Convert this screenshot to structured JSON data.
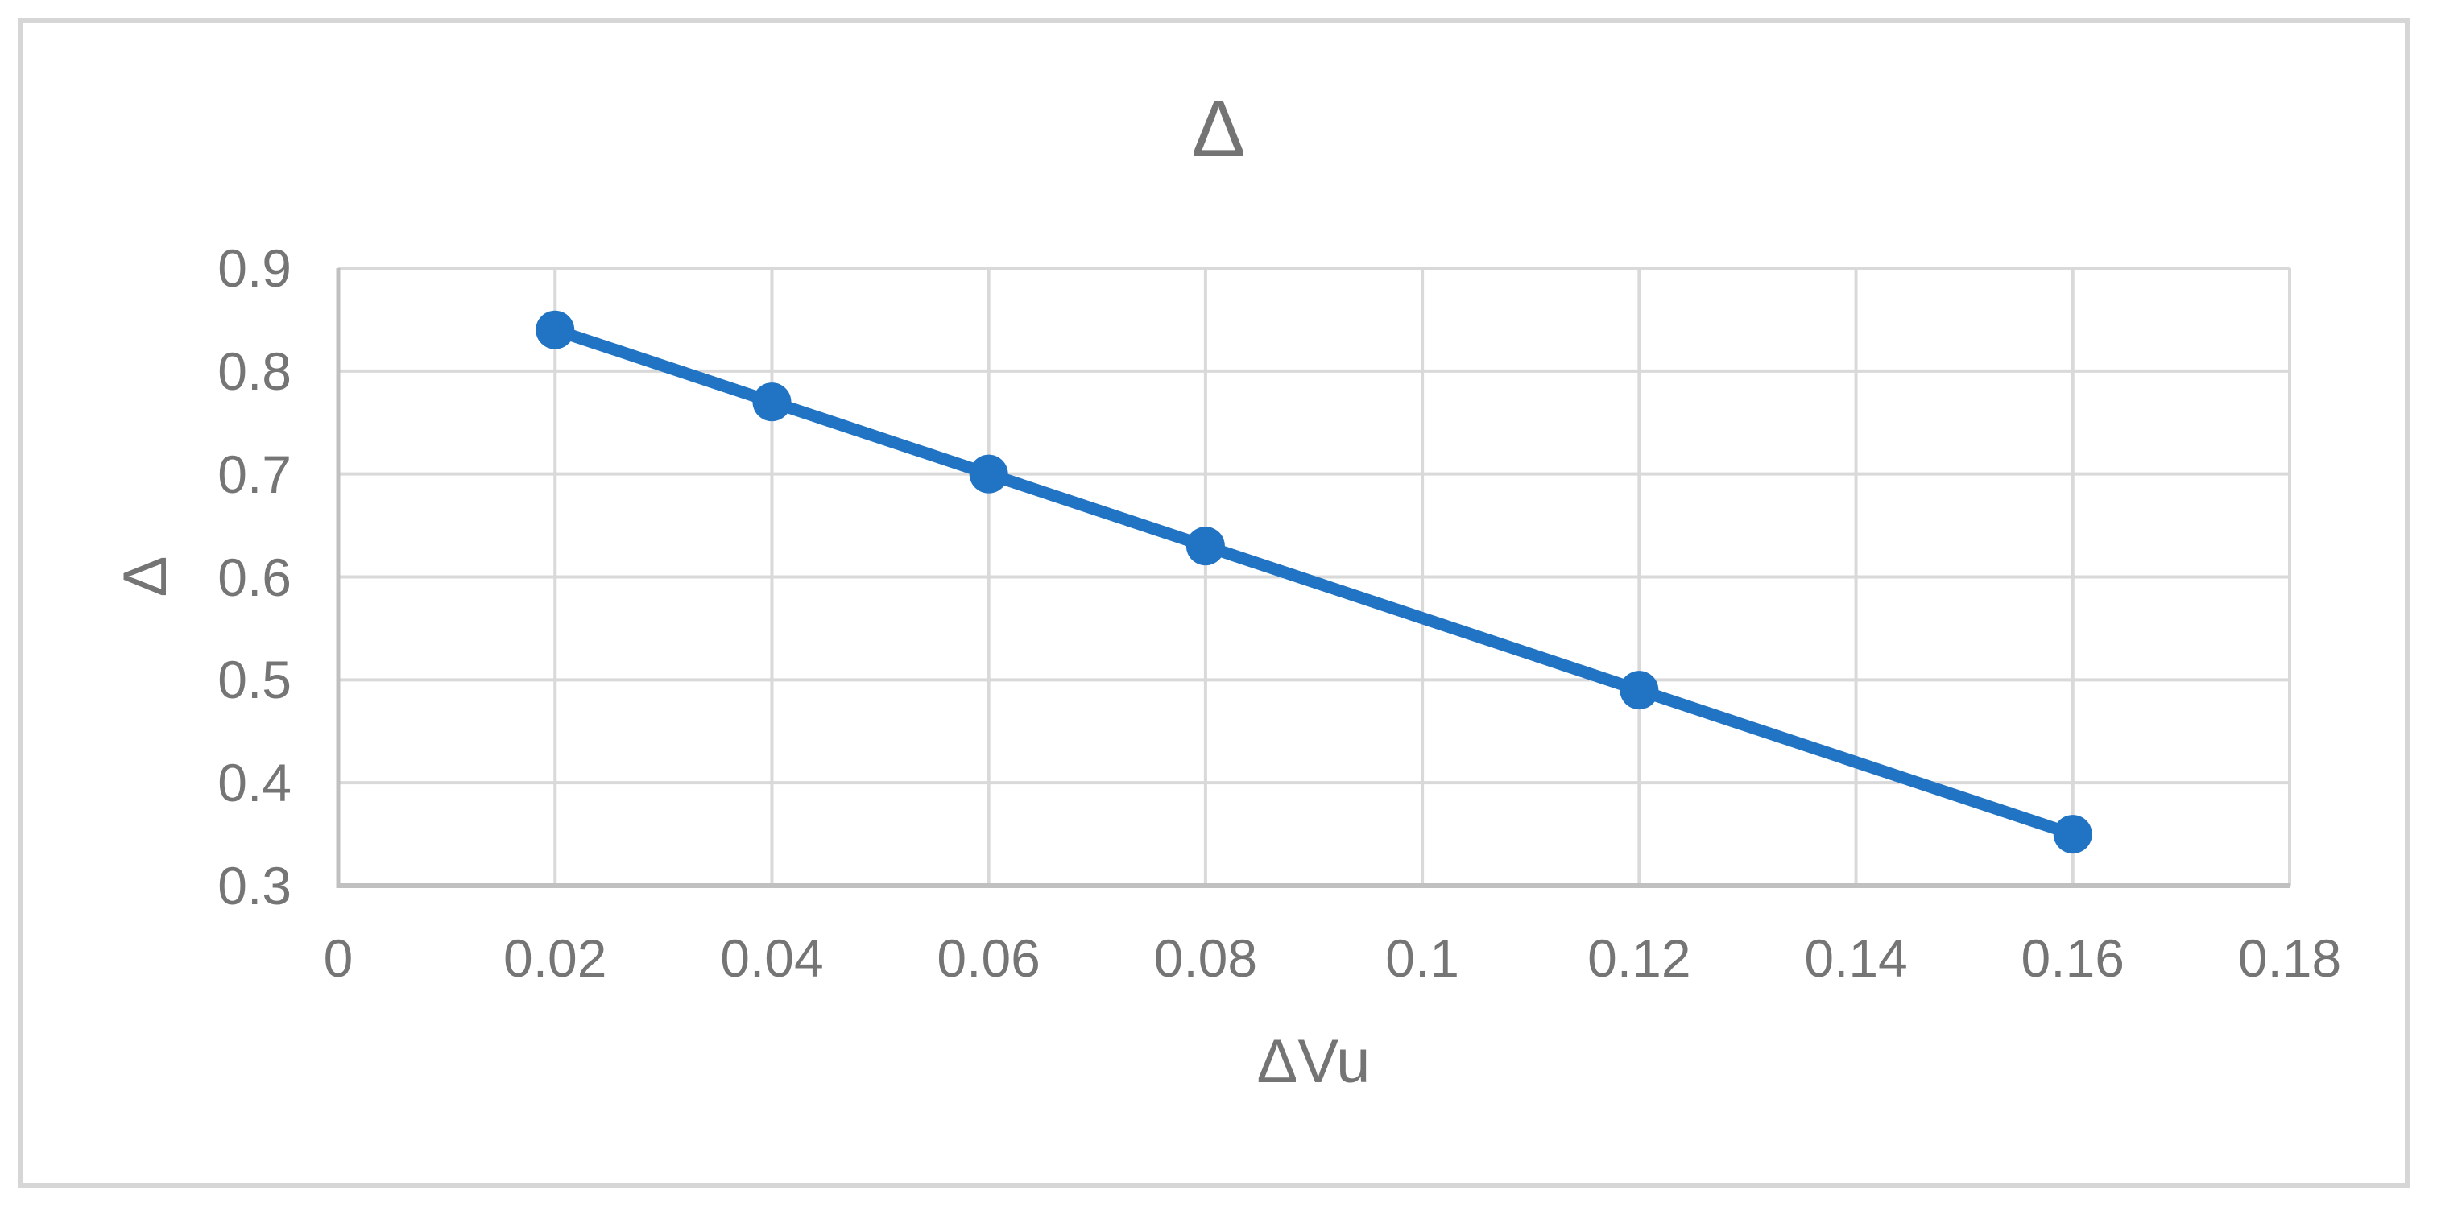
{
  "chart_data": {
    "type": "line",
    "title": "Δ",
    "xlabel": "ΔVu",
    "ylabel": "Δ",
    "x": [
      0.02,
      0.04,
      0.06,
      0.08,
      0.12,
      0.16
    ],
    "y": [
      0.84,
      0.77,
      0.7,
      0.63,
      0.49,
      0.35
    ],
    "xlim": [
      0,
      0.18
    ],
    "ylim": [
      0.3,
      0.9
    ],
    "xticks": [
      0,
      0.02,
      0.04,
      0.06,
      0.08,
      0.1,
      0.12,
      0.14,
      0.16,
      0.18
    ],
    "xtick_labels": [
      "0",
      "0.02",
      "0.04",
      "0.06",
      "0.08",
      "0.1",
      "0.12",
      "0.14",
      "0.16",
      "0.18"
    ],
    "yticks": [
      0.3,
      0.4,
      0.5,
      0.6,
      0.7,
      0.8,
      0.9
    ],
    "ytick_labels": [
      "0.3",
      "0.4",
      "0.5",
      "0.6",
      "0.7",
      "0.8",
      "0.9"
    ],
    "grid": true,
    "legend": false,
    "colors": {
      "line": "#2173c4",
      "marker": "#2173c4",
      "gridline": "#d9d9d9",
      "axis_line": "#c0c0c0",
      "text": "#757575",
      "frame_border": "#d6d6d6",
      "background": "#ffffff"
    }
  }
}
